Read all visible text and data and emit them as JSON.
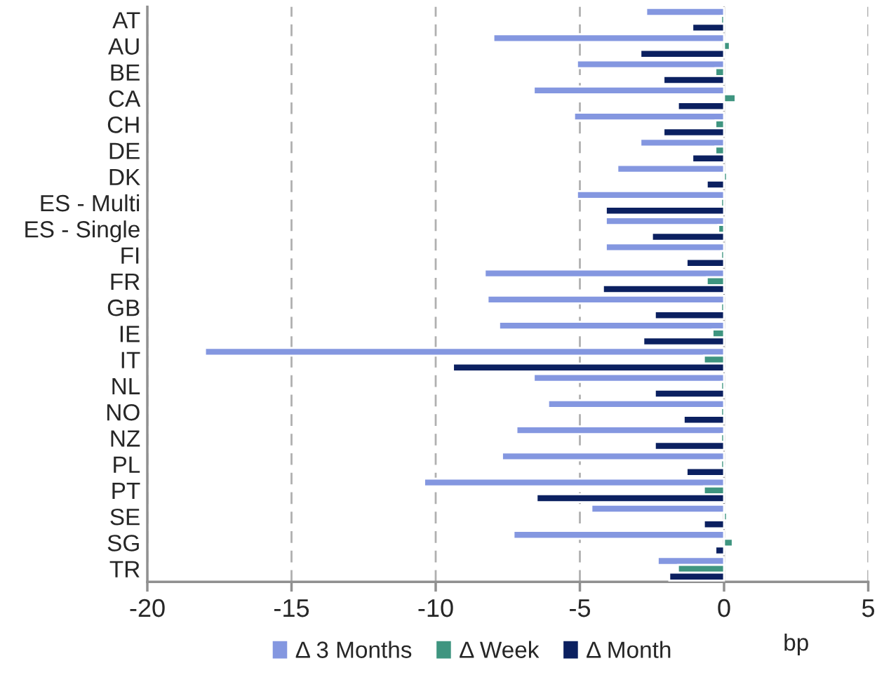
{
  "chart_data": {
    "type": "bar",
    "orientation": "horizontal",
    "xlabel": "bp",
    "categories": [
      "AT",
      "AU",
      "BE",
      "CA",
      "CH",
      "DE",
      "DK",
      "ES - Multi",
      "ES - Single",
      "FI",
      "FR",
      "GB",
      "IE",
      "IT",
      "NL",
      "NO",
      "NZ",
      "PL",
      "PT",
      "SE",
      "SG",
      "TR"
    ],
    "series": [
      {
        "name": "Δ 3 Months",
        "color": "#8497e0",
        "values": [
          -2.7,
          -8.0,
          -5.1,
          -6.6,
          -5.2,
          -2.9,
          -3.7,
          -5.1,
          -4.1,
          -4.1,
          -8.3,
          -8.2,
          -7.8,
          -18.0,
          -6.6,
          -6.1,
          -7.2,
          -7.7,
          -10.4,
          -4.6,
          -7.3,
          -2.3
        ]
      },
      {
        "name": "Δ Week",
        "color": "#3f9580",
        "values": [
          -0.1,
          0.2,
          -0.3,
          0.4,
          -0.3,
          -0.3,
          0.1,
          -0.1,
          -0.2,
          -0.1,
          -0.6,
          -0.1,
          -0.4,
          -0.7,
          -0.1,
          -0.1,
          -0.1,
          -0.1,
          -0.7,
          0.1,
          0.3,
          -1.6
        ]
      },
      {
        "name": "Δ Month",
        "color": "#0b2060",
        "values": [
          -1.1,
          -2.9,
          -2.1,
          -1.6,
          -2.1,
          -1.1,
          -0.6,
          -4.1,
          -2.5,
          -1.3,
          -4.2,
          -2.4,
          -2.8,
          -9.4,
          -2.4,
          -1.4,
          -2.4,
          -1.3,
          -6.5,
          -0.7,
          -0.3,
          -1.9
        ]
      }
    ],
    "xlim": [
      -20,
      5
    ],
    "xticks": [
      -20,
      -15,
      -10,
      -5,
      0,
      5
    ],
    "grid": "x",
    "legend": "bottom"
  }
}
